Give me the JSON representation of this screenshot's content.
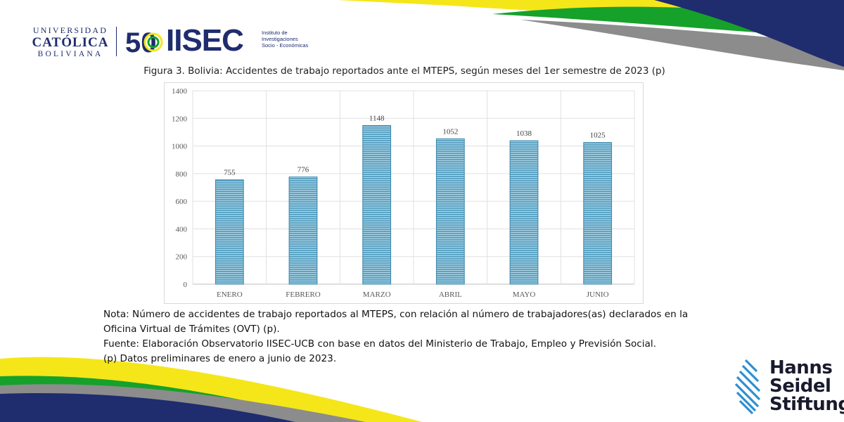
{
  "colors": {
    "navy": "#1f2c6e",
    "yellow": "#f5e61a",
    "green": "#16a12b",
    "gray": "#8c8c8c",
    "bar": "#4a95b8",
    "hss_blue": "#2f8fd0"
  },
  "header": {
    "ucb_line1": "UNIVERSIDAD",
    "ucb_line2": "CATÓLICA",
    "ucb_line3": "BOLIVIANA",
    "iisec_anniversary": "50",
    "iisec_name": "IISEC",
    "iisec_sub1": "Instituto de",
    "iisec_sub2": "Investigaciones",
    "iisec_sub3": "Socio - Económicas"
  },
  "figure_title": "Figura 3. Bolivia: Accidentes de trabajo reportados ante el MTEPS, según meses del 1er semestre de 2023 (p)",
  "chart_data": {
    "type": "bar",
    "categories": [
      "ENERO",
      "FEBRERO",
      "MARZO",
      "ABRIL",
      "MAYO",
      "JUNIO"
    ],
    "values": [
      755,
      776,
      1148,
      1052,
      1038,
      1025
    ],
    "data_labels": [
      "755",
      "776",
      "1148",
      "1052",
      "1038",
      "1025"
    ],
    "yticks": [
      "0",
      "200",
      "400",
      "600",
      "800",
      "1000",
      "1200",
      "1400"
    ],
    "ylim": [
      0,
      1400
    ],
    "grid": true,
    "bar_color": "#4a95b8",
    "xlabel": "",
    "ylabel": ""
  },
  "notes": {
    "line1": "Nota: Número de accidentes de trabajo reportados al MTEPS, con relación al número de trabajadores(as) declarados en la",
    "line2": "Oficina Virtual de Trámites (OVT) (p).",
    "line3": "Fuente: Elaboración Observatorio IISEC-UCB con base en datos del Ministerio de Trabajo, Empleo y Previsión Social.",
    "line4": "(p) Datos preliminares de enero a junio de 2023."
  },
  "footer_logo": {
    "line1": "Hanns",
    "line2": "Seidel",
    "line3": "Stiftung"
  }
}
